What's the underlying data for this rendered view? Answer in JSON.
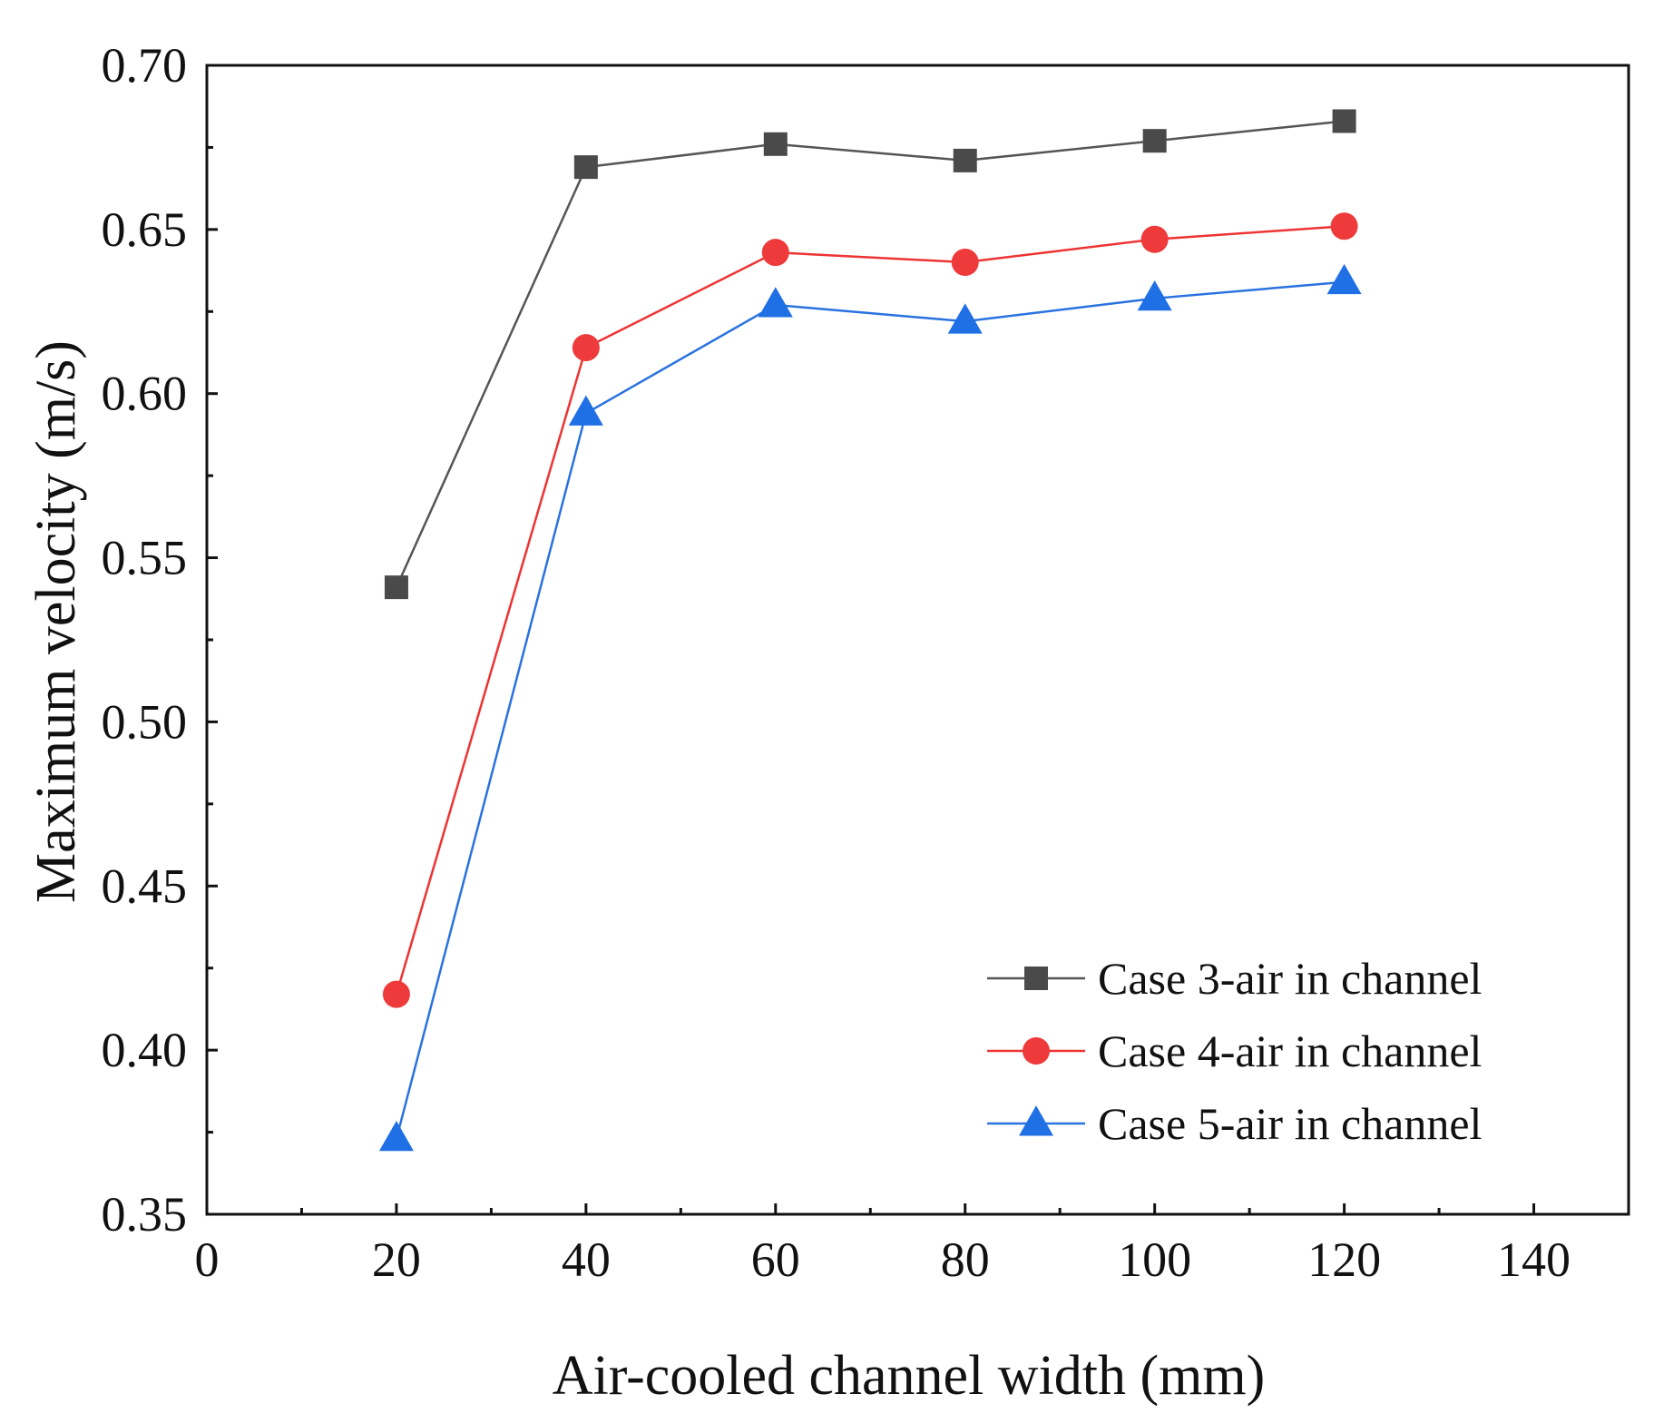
{
  "chart_data": {
    "type": "line",
    "title": "",
    "xlabel": "Air-cooled channel width (mm)",
    "ylabel": "Maximum velocity (m/s)",
    "xlim": [
      0,
      150
    ],
    "ylim": [
      0.35,
      0.7
    ],
    "x_ticks": [
      0,
      20,
      40,
      60,
      80,
      100,
      120,
      140
    ],
    "y_ticks": [
      0.35,
      0.4,
      0.45,
      0.5,
      0.55,
      0.6,
      0.65,
      0.7
    ],
    "x_tick_labels": [
      "0",
      "20",
      "40",
      "60",
      "80",
      "100",
      "120",
      "140"
    ],
    "y_tick_labels": [
      "0.35",
      "0.40",
      "0.45",
      "0.50",
      "0.55",
      "0.60",
      "0.65",
      "0.70"
    ],
    "x": [
      20,
      40,
      60,
      80,
      100,
      120
    ],
    "legend_position": "bottom-right",
    "series": [
      {
        "name": "Case 3-air in channel",
        "values": [
          0.541,
          0.669,
          0.676,
          0.671,
          0.677,
          0.683
        ],
        "line_color": "#555555",
        "marker_color": "#4a4a4a",
        "marker": "square"
      },
      {
        "name": "Case 4-air in channel",
        "values": [
          0.417,
          0.614,
          0.643,
          0.64,
          0.647,
          0.651
        ],
        "line_color": "#ee3333",
        "marker_color": "#ee3a3a",
        "marker": "circle"
      },
      {
        "name": "Case 5-air in channel",
        "values": [
          0.373,
          0.594,
          0.627,
          0.622,
          0.629,
          0.634
        ],
        "line_color": "#2a72e0",
        "marker_color": "#1f6fe5",
        "marker": "triangle"
      }
    ]
  }
}
